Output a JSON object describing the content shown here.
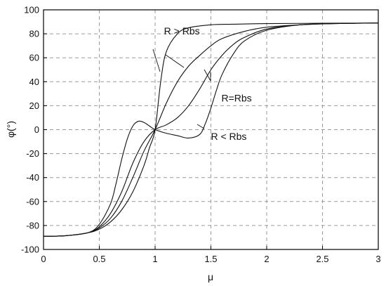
{
  "chart_data": {
    "type": "line",
    "title": "",
    "xlabel": "μ",
    "ylabel": "φ(°)",
    "xlim": [
      0,
      3
    ],
    "ylim": [
      -100,
      100
    ],
    "xticks": [
      0,
      0.5,
      1,
      1.5,
      2,
      2.5,
      3
    ],
    "xtick_labels": [
      "0",
      "0.5",
      "1",
      "1.5",
      "2",
      "2.5",
      "3"
    ],
    "yticks": [
      -100,
      -80,
      -60,
      -40,
      -20,
      0,
      20,
      40,
      60,
      80,
      100
    ],
    "ytick_labels": [
      "-100",
      "-80",
      "-60",
      "-40",
      "-20",
      "0",
      "20",
      "40",
      "60",
      "80",
      "100"
    ],
    "grid": true,
    "series": [
      {
        "x": [
          0,
          0.2,
          0.4,
          0.5,
          0.6,
          0.7,
          0.8,
          0.9,
          0.95,
          1.0,
          1.05,
          1.1,
          1.2,
          1.3,
          1.5,
          1.7,
          2.0,
          2.5,
          3.0
        ],
        "values": [
          -89,
          -88.5,
          -86,
          -83,
          -77,
          -67,
          -52,
          -30,
          -15,
          0,
          40,
          65,
          80,
          85,
          87.5,
          88,
          88.5,
          88.8,
          89
        ]
      },
      {
        "x": [
          0,
          0.2,
          0.4,
          0.5,
          0.6,
          0.7,
          0.8,
          0.9,
          1.0,
          1.1,
          1.2,
          1.3,
          1.4,
          1.5,
          1.6,
          1.8,
          2.0,
          2.3,
          2.6,
          3.0
        ],
        "values": [
          -89,
          -88.5,
          -86,
          -82,
          -74,
          -60,
          -40,
          -18,
          0,
          22,
          40,
          53,
          62,
          70,
          76,
          82,
          85.5,
          87.5,
          88.5,
          89
        ]
      },
      {
        "x": [
          0,
          0.2,
          0.4,
          0.5,
          0.6,
          0.7,
          0.8,
          0.9,
          1.0,
          1.1,
          1.2,
          1.3,
          1.4,
          1.5,
          1.6,
          1.7,
          1.8,
          2.0,
          2.3,
          2.6,
          3.0
        ],
        "values": [
          -89,
          -88.5,
          -86,
          -81,
          -70,
          -52,
          -28,
          -10,
          0,
          4,
          10,
          20,
          34,
          50,
          62,
          71,
          77,
          84,
          87.5,
          88.5,
          89
        ]
      },
      {
        "x": [
          0,
          0.2,
          0.4,
          0.5,
          0.6,
          0.65,
          0.7,
          0.75,
          0.8,
          0.85,
          0.9,
          0.95,
          1.0,
          1.1,
          1.2,
          1.3,
          1.4,
          1.45,
          1.5,
          1.55,
          1.6,
          1.7,
          1.8,
          2.0,
          2.3,
          2.6,
          3.0
        ],
        "values": [
          -89,
          -88.5,
          -86,
          -79,
          -62,
          -45,
          -25,
          -8,
          3,
          7,
          6,
          3,
          0,
          -3,
          -5,
          -7,
          -4,
          5,
          18,
          33,
          46,
          63,
          74,
          83,
          87.5,
          88.5,
          89
        ]
      }
    ],
    "annotations": [
      {
        "text": "R > Rbs",
        "x": 1.24,
        "y": 82.5
      },
      {
        "text": "R=Rbs",
        "x": 1.73,
        "y": 26.5
      },
      {
        "text": "R < Rbs",
        "x": 1.66,
        "y": -5.5
      }
    ]
  }
}
